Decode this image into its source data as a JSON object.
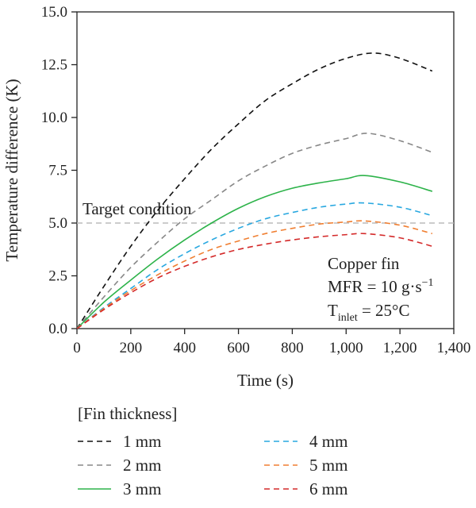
{
  "chart_data": {
    "type": "line",
    "xlabel": "Time (s)",
    "ylabel": "Temperature difference (K)",
    "xlim": [
      0,
      1400
    ],
    "ylim": [
      0,
      15
    ],
    "xticks": [
      0,
      200,
      400,
      600,
      800,
      1000,
      1200,
      1400
    ],
    "xtick_labels": [
      "0",
      "200",
      "400",
      "600",
      "800",
      "1,000",
      "1,200",
      "1,400"
    ],
    "yticks": [
      0,
      2.5,
      5,
      7.5,
      10,
      12.5,
      15
    ],
    "ytick_labels": [
      "0.0",
      "2.5",
      "5.0",
      "7.5",
      "10.0",
      "12.5",
      "15.0"
    ],
    "grid": false,
    "reference_line": {
      "y": 5.0,
      "label": "Target condition",
      "color": "#bbbbbb"
    },
    "annotations": {
      "line1": "Copper fin",
      "line2_prefix": "MFR = 10 g·s",
      "line2_sup": "−1",
      "line3_prefix": "T",
      "line3_sub": "inlet",
      "line3_suffix": " = 25°C"
    },
    "legend": {
      "title": "[Fin thickness]",
      "placement": "bottom"
    },
    "series": [
      {
        "name": "1 mm",
        "color": "#111111",
        "dash": "dashed",
        "x": [
          0,
          100,
          200,
          300,
          400,
          500,
          600,
          700,
          800,
          900,
          1000,
          1100,
          1200,
          1320
        ],
        "y": [
          0,
          2.0,
          3.9,
          5.6,
          7.1,
          8.5,
          9.7,
          10.8,
          11.6,
          12.3,
          12.8,
          13.05,
          12.8,
          12.2
        ]
      },
      {
        "name": "2 mm",
        "color": "#888888",
        "dash": "dashed",
        "x": [
          0,
          100,
          200,
          300,
          400,
          500,
          600,
          700,
          800,
          900,
          1000,
          1080,
          1200,
          1320
        ],
        "y": [
          0,
          1.5,
          2.9,
          4.1,
          5.2,
          6.1,
          7.0,
          7.7,
          8.3,
          8.7,
          9.0,
          9.25,
          8.9,
          8.35
        ]
      },
      {
        "name": "3 mm",
        "color": "#2db34a",
        "dash": "solid",
        "x": [
          0,
          100,
          200,
          300,
          400,
          500,
          600,
          700,
          800,
          900,
          1000,
          1070,
          1200,
          1320
        ],
        "y": [
          0,
          1.25,
          2.3,
          3.3,
          4.2,
          5.0,
          5.7,
          6.25,
          6.65,
          6.9,
          7.1,
          7.25,
          6.95,
          6.5
        ]
      },
      {
        "name": "4 mm",
        "color": "#29a8e0",
        "dash": "dashed",
        "x": [
          0,
          100,
          200,
          300,
          400,
          500,
          600,
          700,
          800,
          900,
          1000,
          1070,
          1200,
          1320
        ],
        "y": [
          0,
          1.0,
          1.9,
          2.8,
          3.55,
          4.2,
          4.75,
          5.2,
          5.5,
          5.75,
          5.9,
          5.95,
          5.75,
          5.35
        ]
      },
      {
        "name": "5 mm",
        "color": "#f07f32",
        "dash": "dashed",
        "x": [
          0,
          100,
          200,
          300,
          400,
          500,
          600,
          700,
          800,
          900,
          1000,
          1070,
          1200,
          1320
        ],
        "y": [
          0,
          0.95,
          1.8,
          2.55,
          3.2,
          3.75,
          4.15,
          4.5,
          4.75,
          4.95,
          5.05,
          5.1,
          4.9,
          4.5
        ]
      },
      {
        "name": "6 mm",
        "color": "#d42a2a",
        "dash": "dashed",
        "x": [
          0,
          100,
          200,
          300,
          400,
          500,
          600,
          700,
          800,
          900,
          1000,
          1070,
          1200,
          1320
        ],
        "y": [
          0,
          0.9,
          1.7,
          2.4,
          2.95,
          3.4,
          3.75,
          4.0,
          4.2,
          4.35,
          4.45,
          4.5,
          4.3,
          3.9
        ]
      }
    ]
  }
}
